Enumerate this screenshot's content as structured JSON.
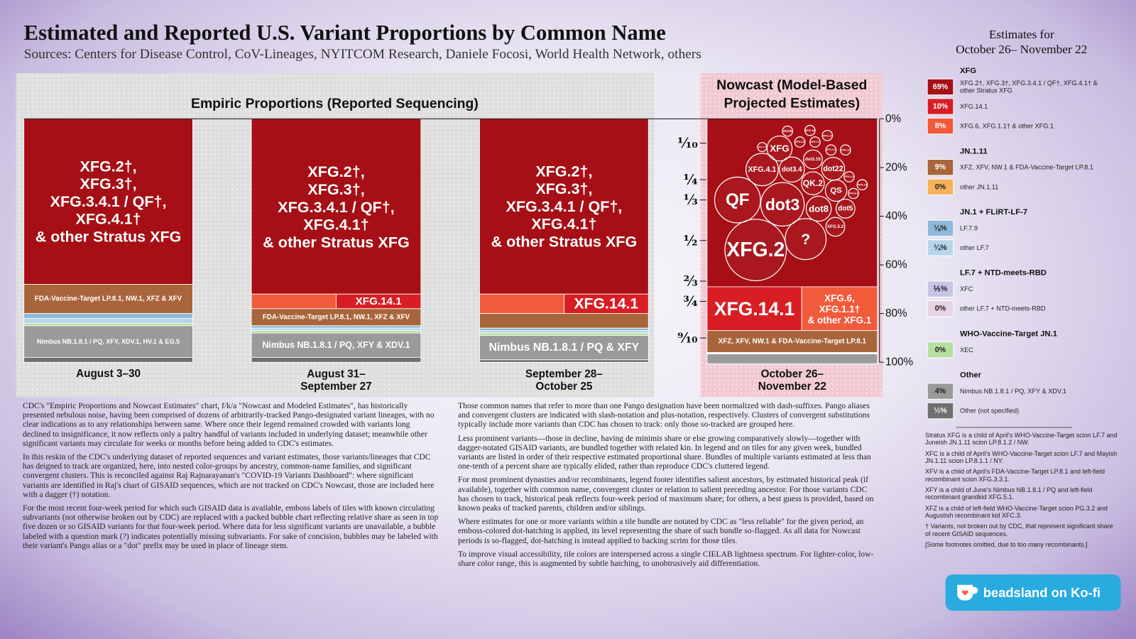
{
  "chart_data": {
    "type": "stacked_bar",
    "title": "Estimated and Reported U.S. Variant Proportions by Common Name",
    "subtitle": "Sources: Centers for Disease Control, CoV-Lineages, NYITCOM Research, Daniele Focosi, World Health Network, others",
    "panel_titles": [
      "Empiric Proportions (Reported Sequencing)",
      "Nowcast (Model-Based\nProjected Estimates)"
    ],
    "categories": [
      "August 3–30",
      "August 31–\nSeptember 27",
      "September 28–\nOctober 25",
      "October 26–\nNovember 22"
    ],
    "ylim": [
      0,
      100
    ],
    "yticks": [
      {
        "value": 0,
        "label": "0%"
      },
      {
        "value": 20,
        "label": "20%"
      },
      {
        "value": 40,
        "label": "40%"
      },
      {
        "value": 60,
        "label": "60%"
      },
      {
        "value": 80,
        "label": "80%"
      },
      {
        "value": 100,
        "label": "100%"
      }
    ],
    "fraction_ticks": [
      {
        "value": 10,
        "label": "⅒"
      },
      {
        "value": 25,
        "label": "¼"
      },
      {
        "value": 33.33,
        "label": "⅓"
      },
      {
        "value": 50,
        "label": "½"
      },
      {
        "value": 66.67,
        "label": "⅔"
      },
      {
        "value": 75,
        "label": "¾"
      },
      {
        "value": 90,
        "label": "⁹⁄₁₀"
      }
    ],
    "legend_title": "Estimates for\nOctober 26– November 22",
    "groups": [
      {
        "title": "XFG",
        "series": [
          {
            "name": "XFG.2†, XFG.3†, XFG.3.4.1 / QF†, XFG.4.1† & other Stratus XFG",
            "color": "#a50f15",
            "values": [
              68,
              72,
              72,
              69
            ],
            "value_labels": [
              null,
              null,
              null,
              "69%"
            ],
            "tile_labels": [
              "XFG.2†,\nXFG.3†,\nXFG.3.4.1 / QF†,\nXFG.4.1†\n& other Stratus XFG",
              "XFG.2†,\nXFG.3†,\nXFG.3.4.1 / QF†,\nXFG.4.1†\n& other Stratus XFG",
              "XFG.2†,\nXFG.3†,\nXFG.3.4.1 / QF†,\nXFG.4.1†\n& other Stratus XFG",
              null
            ]
          },
          {
            "name": "XFG.14.1",
            "color": "#d81e24",
            "values": [
              0,
              3,
              4,
              10
            ],
            "value_labels": [
              null,
              null,
              null,
              "10%"
            ],
            "tile_labels": [
              null,
              "XFG.14.1",
              "XFG.14.1",
              "XFG.14.1"
            ]
          },
          {
            "name": "XFG.6, XFG.1.1† & other XFG.1",
            "color": "#f15a3a",
            "values": [
              0,
              3,
              4,
              8
            ],
            "value_labels": [
              null,
              null,
              null,
              "8%"
            ],
            "tile_labels": [
              null,
              null,
              null,
              "XFG.6,\nXFG.1.1†\n& other XFG.1"
            ]
          }
        ]
      },
      {
        "title": "JN.1.11",
        "series": [
          {
            "name": "XFZ, XFV, NW.1 & FDA-Vaccine-Target LP.8.1",
            "color": "#a8653b",
            "values": [
              12,
              7,
              6,
              9
            ],
            "value_labels": [
              null,
              null,
              null,
              "9%"
            ],
            "tile_labels": [
              "FDA-Vaccine-Target LP.8.1, NW.1, XFZ & XFV",
              "FDA-Vaccine-Target LP.8.1, NW.1, XFZ & XFV",
              null,
              "XFZ, XFV, NW.1 & FDA-Vaccine-Target LP.8.1"
            ]
          },
          {
            "name": "other JN.1.11",
            "color": "#f5b25a",
            "values": [
              0,
              0,
              0,
              0
            ],
            "value_labels": [
              null,
              null,
              null,
              "0%"
            ],
            "tile_labels": [
              null,
              null,
              null,
              null
            ]
          }
        ]
      },
      {
        "title": "JN.1 + FLiRT-LF-7",
        "series": [
          {
            "name": "LF.7.9",
            "color": "#8fb9dc",
            "values": [
              2,
              1,
              1,
              0.125
            ],
            "value_labels": [
              null,
              null,
              null,
              "⅛%"
            ],
            "tile_labels": [
              null,
              null,
              null,
              null
            ]
          },
          {
            "name": "other LF.7",
            "color": "#b8d4ea",
            "values": [
              2,
              1,
              1,
              0.25
            ],
            "value_labels": [
              null,
              null,
              null,
              "¼%"
            ],
            "tile_labels": [
              null,
              null,
              null,
              null
            ]
          }
        ]
      },
      {
        "title": "LF.7 + NTD-meets-RBD",
        "series": [
          {
            "name": "XFC",
            "color": "#c9c3e6",
            "values": [
              0,
              0,
              0,
              0.2
            ],
            "value_labels": [
              null,
              null,
              null,
              "⅕%"
            ],
            "tile_labels": [
              null,
              null,
              null,
              null
            ]
          },
          {
            "name": "other LF.7 + NTD-meets-RBD",
            "color": "#e8d3e2",
            "values": [
              0,
              0,
              0,
              0
            ],
            "value_labels": [
              null,
              null,
              null,
              "0%"
            ],
            "tile_labels": [
              null,
              null,
              null,
              null
            ]
          }
        ]
      },
      {
        "title": "WHO-Vaccine-Target JN.1",
        "series": [
          {
            "name": "XEC",
            "color": "#b5e0a2",
            "values": [
              1,
              1,
              1,
              0
            ],
            "value_labels": [
              null,
              null,
              null,
              "0%"
            ],
            "tile_labels": [
              null,
              null,
              null,
              null
            ]
          }
        ]
      },
      {
        "title": "Other",
        "series": [
          {
            "name": "Nimbus NB.1.8.1 / PQ, XFY & XDV.1",
            "color": "#9a9a9a",
            "values": [
              13,
              10,
              10,
              4
            ],
            "value_labels": [
              null,
              null,
              null,
              "4%"
            ],
            "tile_labels": [
              "Nimbus NB.1.8.1 / PQ, XFY, XDV.1, HV.1 & EG.5",
              "Nimbus NB.1.8.1 / PQ, XFY & XDV.1",
              "Nimbus NB.1.8.1 / PQ & XFY",
              null
            ]
          },
          {
            "name": "Other (not specified)",
            "color": "#6f6f6f",
            "values": [
              2,
              2,
              1,
              0.333
            ],
            "value_labels": [
              null,
              null,
              null,
              "⅓%"
            ],
            "tile_labels": [
              null,
              null,
              null,
              null
            ]
          }
        ]
      }
    ],
    "bubbles": [
      {
        "label": "XFG.2",
        "value": 18
      },
      {
        "label": "QF",
        "value": 10
      },
      {
        "label": "dot3",
        "value": 9
      },
      {
        "label": "?",
        "value": 8
      },
      {
        "label": "XFG.4.1",
        "value": 5
      },
      {
        "label": "dot3.4",
        "value": 3
      },
      {
        "label": "QK.2",
        "value": 2.5
      },
      {
        "label": "QS",
        "value": 2.2
      },
      {
        "label": "dot8",
        "value": 3
      },
      {
        "label": "dot22",
        "value": 2.5
      },
      {
        "label": "XFG",
        "value": 3
      },
      {
        "label": "dot5",
        "value": 1.7
      },
      {
        "label": "XFG.5.2",
        "value": 1.7
      },
      {
        "label": "dot3.15",
        "value": 1.7
      },
      {
        "label": "dot25",
        "value": 0.5
      },
      {
        "label": "XFG.18",
        "value": 0.5
      },
      {
        "label": "XFG.3.6",
        "value": 0.5
      },
      {
        "label": "XFG.17",
        "value": 0.5
      },
      {
        "label": "XFG.1.1",
        "value": 0.5
      },
      {
        "label": "XFG.3.3",
        "value": 0.5
      },
      {
        "label": "XFG.11",
        "value": 0.5
      },
      {
        "label": "XFG.3.4",
        "value": 0.5
      },
      {
        "label": "XFG.14",
        "value": 0.5
      },
      {
        "label": "XFG.8.3",
        "value": 0.5
      },
      {
        "label": "XFG.3.1",
        "value": 0.4
      }
    ]
  },
  "article": {
    "paragraphs": [
      "CDC's \"Empiric Proportions and Nowcast Estimates\" chart, f/k/a \"Nowcast and Modeled Estimates\", has historically presented nebulous noise, having been comprised of dozens of arbitrarily-tracked Pango-designated variant lineages, with no clear indications as to any relationships between same. Where once their legend remained crowded with variants long declined to insignificance, it now reflects only a paltry handful of variants included in underlying dataset; meanwhile other significant variants may circulate for weeks or months before being added to CDC's estimates.",
      "In this reskin of the CDC's underlying dataset of reported sequences and variant estimates, those variants/lineages that CDC has deigned to track are organized, here, into nested color-groups by ancestry, common-name families, and significant convergent clusters. This is reconciled against Raj Rajnarayanan's \"COVID-19 Variants Dashboard\": where significant variants are identified in Raj's chart of GISAID sequences, which are not tracked on CDC's Nowcast, those are included here with a dagger (†) notation.",
      "For the most recent four-week period for which such GISAID data is available, emboss labels of tiles with known circulating subvariants (not otherwise broken out by CDC) are replaced with a packed bubble chart reflecting relative share as seen in top five dozen or so GISAID variants for that four-week period. Where data for less significant variants are unavailable, a bubble labeled with a question mark (?) indicates potentially missing subvariants. For sake of concision, bubbles may be labeled with their variant's Pango alias or a \"dot\" prefix may be used in place of lineage stem.",
      "Those common names that refer to more than one Pango designation have been normalized with dash-suffixes. Pango aliases and convergent clusters are indicated with slash-notation and plus-notation, respectively. Clusters of convergent substitutions typically include more variants than CDC has chosen to track: only those so-tracked are grouped here.",
      "Less prominent variants—those in decline, having de minimis share or else growing comparatively slowly—together with dagger-notated GISAID variants, are bundled together with related kin. In legend and on tiles for any given week, bundled variants are listed in order of their respective estimated proportional share. Bundles of multiple variants estimated at less than one-tenth of a percent share are typically elided, rather than reproduce CDC's cluttered legend.",
      "For most prominent dynasties and/or recombinants, legend footer identifies salient ancestors, by estimated historical peak (if available), together with common name, convergent cluster or relation to salient preceding ancestor. For those variants CDC has chosen to track, historical peak reflects four-week period of maximum share; for others, a best guess is provided, based on known peaks of tracked parents, children and/or siblings.",
      "Where estimates for one or more variants within a tile bundle are notated by CDC as \"less reliable\" for the given period, an emboss-colored dot-hatching is applied, its level representing the share of such bundle so-flagged. As all data for Nowcast periods is so-flagged, dot-hatching is instead applied to backing scrim for those tiles.",
      "To improve visual accessibility, tile colors are interspersed across a single CIELAB lightness spectrum. For lighter-color, low-share color range, this is augmented by subtle hatching, to unobtrusively aid differentiation."
    ]
  },
  "footnotes": [
    "Stratus XFG is a child of April's WHO-Vaccine-Target scion LF.7 and Juneish JN.1.11 scion LP.8.1.2 / NW.",
    "XFC is a child of April's WHO-Vaccine-Target scion LF.7 and Mayish JN.1.11 scion LP.8.1.1 / NY.",
    "XFV is a child of April's FDA-Vaccine-Target LP.8.1 and left-field recombinant scion XFG.3.3.1.",
    "XFY is a child of June's Nimbus NB.1.8.1 / PQ and left-field recombinant grandkid XFG.5.1.",
    "XFZ is a child of left-field WHO-Vaccine-Target scion PG.3.2 and Augustish recombinant kid XFC.3.",
    "† Variants, not broken out by CDC, that represent significant share of recent GISAID sequences.",
    "[Some footnotes omitted, due to too many recombinants.]"
  ],
  "kofi": "beadsland on Ko-fi"
}
